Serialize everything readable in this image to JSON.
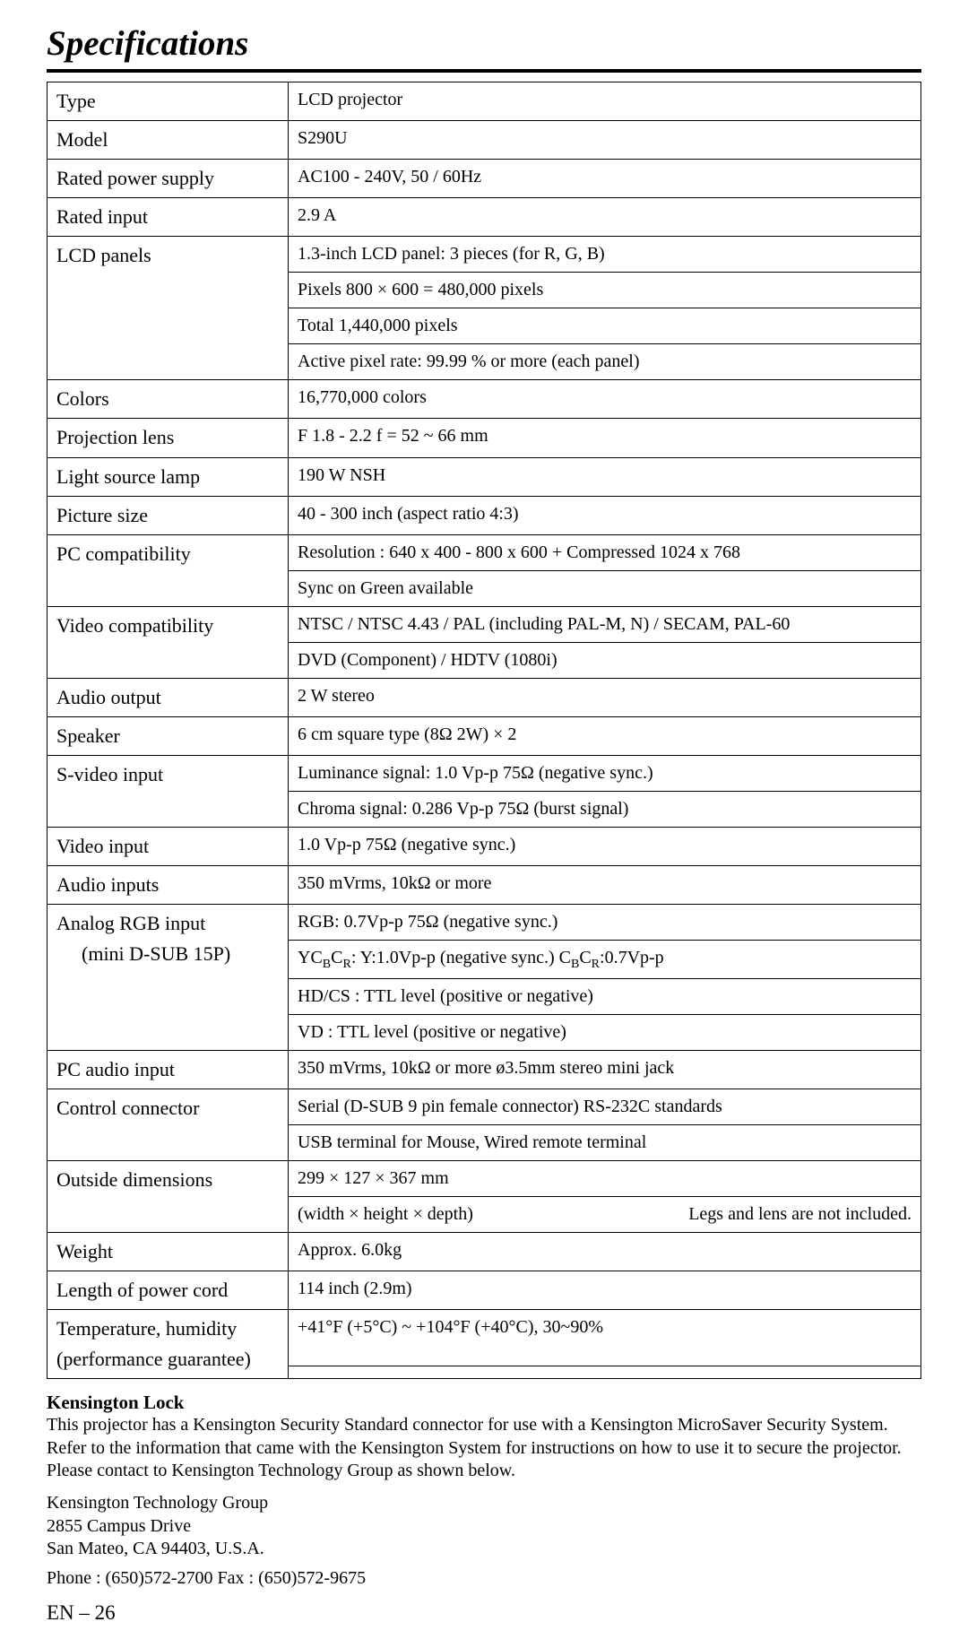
{
  "title": "Specifications",
  "rows": [
    {
      "label": "Type",
      "values": [
        "LCD projector"
      ]
    },
    {
      "label": "Model",
      "values": [
        "S290U"
      ]
    },
    {
      "label": "Rated power supply",
      "values": [
        "AC100 - 240V,  50 / 60Hz"
      ]
    },
    {
      "label": "Rated input",
      "values": [
        "2.9 A"
      ]
    },
    {
      "label": "LCD panels",
      "values": [
        "1.3-inch LCD panel: 3 pieces (for R, G, B)",
        "Pixels    800 ×   600 = 480,000 pixels",
        "Total     1,440,000 pixels",
        "Active pixel rate: 99.99 % or more (each panel)"
      ]
    },
    {
      "label": "Colors",
      "values": [
        "16,770,000 colors"
      ]
    },
    {
      "label": "Projection lens",
      "values": [
        "F 1.8 - 2.2    f = 52 ~ 66 mm"
      ]
    },
    {
      "label": "Light source lamp",
      "values": [
        "190 W NSH"
      ]
    },
    {
      "label": "Picture size",
      "values": [
        "40 - 300 inch (aspect ratio 4:3)"
      ]
    },
    {
      "label": "PC compatibility",
      "values": [
        "Resolution : 640 x 400 - 800 x 600 + Compressed 1024 x 768",
        "Sync on Green available"
      ]
    },
    {
      "label": "Video compatibility",
      "values": [
        "NTSC / NTSC 4.43 / PAL (including PAL-M, N) / SECAM, PAL-60",
        "DVD (Component) / HDTV (1080i)"
      ]
    },
    {
      "label": "Audio output",
      "values": [
        "2 W  stereo"
      ]
    },
    {
      "label": "Speaker",
      "values": [
        "6 cm square type (8Ω 2W) × 2"
      ]
    },
    {
      "label": "S-video input",
      "values": [
        "Luminance signal: 1.0 Vp-p 75Ω    (negative sync.)",
        "Chroma signal: 0.286 Vp-p 75Ω  (burst signal)"
      ]
    },
    {
      "label": "Video input",
      "values": [
        "1.0 Vp-p  75Ω   (negative sync.)"
      ]
    },
    {
      "label": "Audio inputs",
      "values": [
        "350 mVrms,  10kΩ or more"
      ]
    },
    {
      "label": "Analog RGB input\n    (mini D-SUB 15P)",
      "values": [
        "RGB: 0.7Vp-p  75Ω (negative sync.)",
        "YC<sub>B</sub>C<sub>R</sub>: Y:1.0Vp-p (negative sync.)   C<sub>B</sub>C<sub>R</sub>:0.7Vp-p",
        "HD/CS : TTL level (positive or negative)",
        "VD : TTL level (positive or negative)"
      ]
    },
    {
      "label": "PC audio input",
      "values": [
        "350 mVrms,  10kΩ or more    ø3.5mm stereo mini jack"
      ]
    },
    {
      "label": "Control connector",
      "values": [
        "Serial (D-SUB 9 pin female connector) RS-232C standards",
        "USB terminal for Mouse, Wired remote terminal"
      ]
    },
    {
      "label": "Outside dimensions",
      "values": [
        "299 × 127  × 367 mm",
        {
          "left": "(width ×   height ×   depth)",
          "right": "Legs and lens are not included."
        }
      ]
    },
    {
      "label": "Weight",
      "values": [
        "Approx.  6.0kg"
      ]
    },
    {
      "label": "Length of power cord",
      "values": [
        "114 inch (2.9m)"
      ]
    },
    {
      "label": "Temperature, humidity\n(performance guarantee)",
      "values": [
        "+41°F (+5°C) ~ +104°F (+40°C),  30~90%",
        ""
      ]
    }
  ],
  "kensington": {
    "heading": "Kensington Lock",
    "body": "This projector has a Kensington Security Standard connector for use with a Kensington MicroSaver Security System. Refer to the information that came with the Kensington System for instructions on how to use it to secure the projector. Please contact to Kensington Technology Group as shown below.",
    "addr1": "Kensington Technology Group",
    "addr2": "2855 Campus Drive",
    "addr3": "San Mateo, CA 94403, U.S.A.",
    "phone": "Phone : (650)572-2700    Fax : (650)572-9675"
  },
  "pagenum": "EN – 26"
}
